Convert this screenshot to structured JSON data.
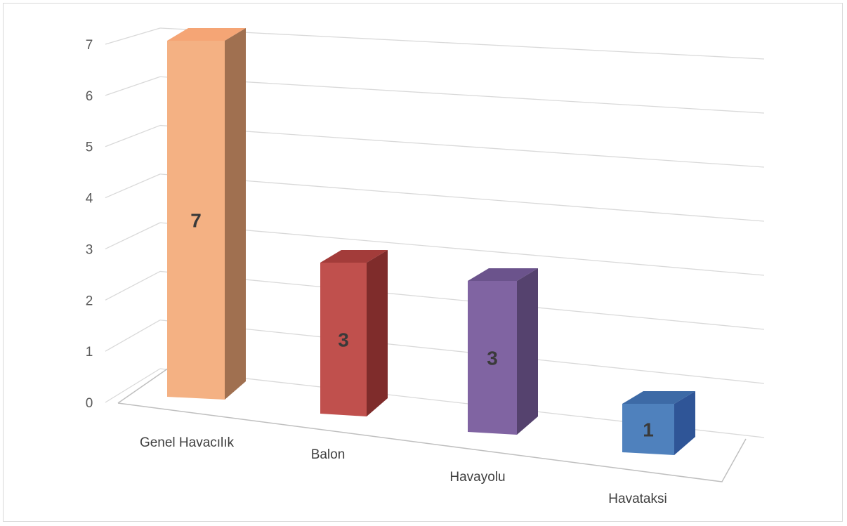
{
  "chart_data": {
    "type": "bar",
    "style": "3d-column",
    "categories": [
      "Genel Havacılık",
      "Balon",
      "Havayolu",
      "Havataksi"
    ],
    "values": [
      7,
      3,
      3,
      1
    ],
    "data_labels": [
      "7",
      "3",
      "3",
      "1"
    ],
    "y_ticks": [
      "0",
      "1",
      "2",
      "3",
      "4",
      "5",
      "6",
      "7"
    ],
    "ylim": [
      0,
      7
    ],
    "grid": true,
    "legend": "none",
    "colors": {
      "front": [
        "#f4b183",
        "#c0504d",
        "#8064a2",
        "#4f81bd"
      ],
      "side": [
        "#a07050",
        "#7f2c2b",
        "#55426e",
        "#2f5597"
      ],
      "top": [
        "#f5a575",
        "#a33c3a",
        "#6b538c",
        "#3d6aa6"
      ],
      "grid": "#d9d9d9",
      "axis": "#bfbfbf"
    }
  }
}
